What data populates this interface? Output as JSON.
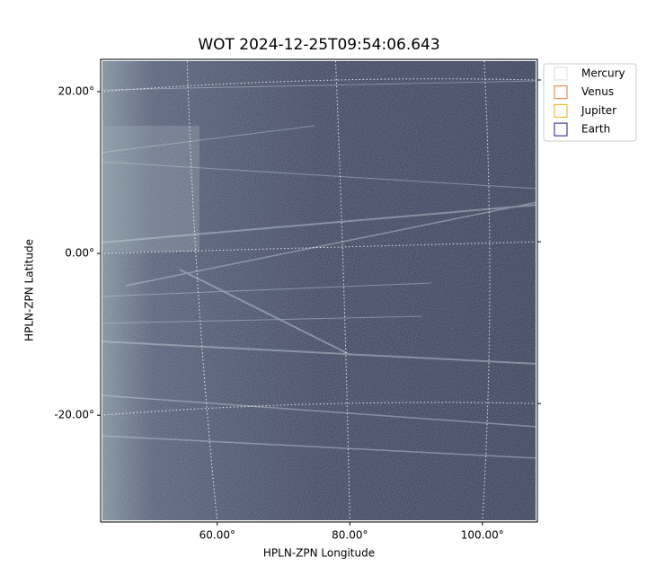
{
  "chart_data": {
    "type": "image",
    "title": "WOT 2024-12-25T09:54:06.643",
    "xlabel": "HPLN-ZPN Longitude",
    "ylabel": "HPLN-ZPN Latitude",
    "xlim": [
      42.4,
      108.3
    ],
    "ylim": [
      -33.2,
      24
    ],
    "xticks": [
      {
        "value": 60,
        "label": "60.00°"
      },
      {
        "value": 80,
        "label": "80.00°"
      },
      {
        "value": 100,
        "label": "100.00°"
      }
    ],
    "yticks": [
      {
        "value": 20,
        "label": "20.00°"
      },
      {
        "value": 0,
        "label": "0.00°"
      },
      {
        "value": -20,
        "label": "-20.00°"
      }
    ],
    "grid": true,
    "legend": "upper right",
    "series": [
      {
        "name": "Mercury",
        "color": "#dddddd"
      },
      {
        "name": "Venus",
        "color": "#e07b39"
      },
      {
        "name": "Jupiter",
        "color": "#e8b020"
      },
      {
        "name": "Earth",
        "color": "#1a1a80"
      }
    ]
  }
}
